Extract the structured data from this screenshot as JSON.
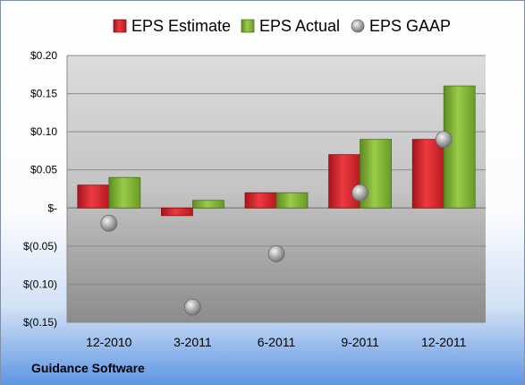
{
  "footer": {
    "company": "Guidance Software"
  },
  "chart_data": {
    "type": "bar",
    "title": "",
    "xlabel": "",
    "ylabel": "",
    "categories": [
      "12-2010",
      "3-2011",
      "6-2011",
      "9-2011",
      "12-2011"
    ],
    "series": [
      {
        "name": "EPS Estimate",
        "kind": "bar",
        "color": "#e8272e",
        "values": [
          0.03,
          -0.01,
          0.02,
          0.07,
          0.09
        ]
      },
      {
        "name": "EPS Actual",
        "kind": "bar",
        "color": "#8fbf3a",
        "values": [
          0.04,
          0.01,
          0.02,
          0.09,
          0.16
        ]
      },
      {
        "name": "EPS GAAP",
        "kind": "marker",
        "color": "#a6a6a6",
        "values": [
          -0.02,
          -0.13,
          -0.06,
          0.02,
          0.09
        ]
      }
    ],
    "ylim": [
      -0.15,
      0.2
    ],
    "yticks": [
      0.2,
      0.15,
      0.1,
      0.05,
      0,
      -0.05,
      -0.1,
      -0.15
    ],
    "ytick_labels": [
      "$0.20",
      "$0.15",
      "$0.10",
      "$0.05",
      "$-",
      "$(0.05)",
      "$(0.10)",
      "$(0.15)"
    ],
    "grid": true,
    "legend": "top"
  }
}
